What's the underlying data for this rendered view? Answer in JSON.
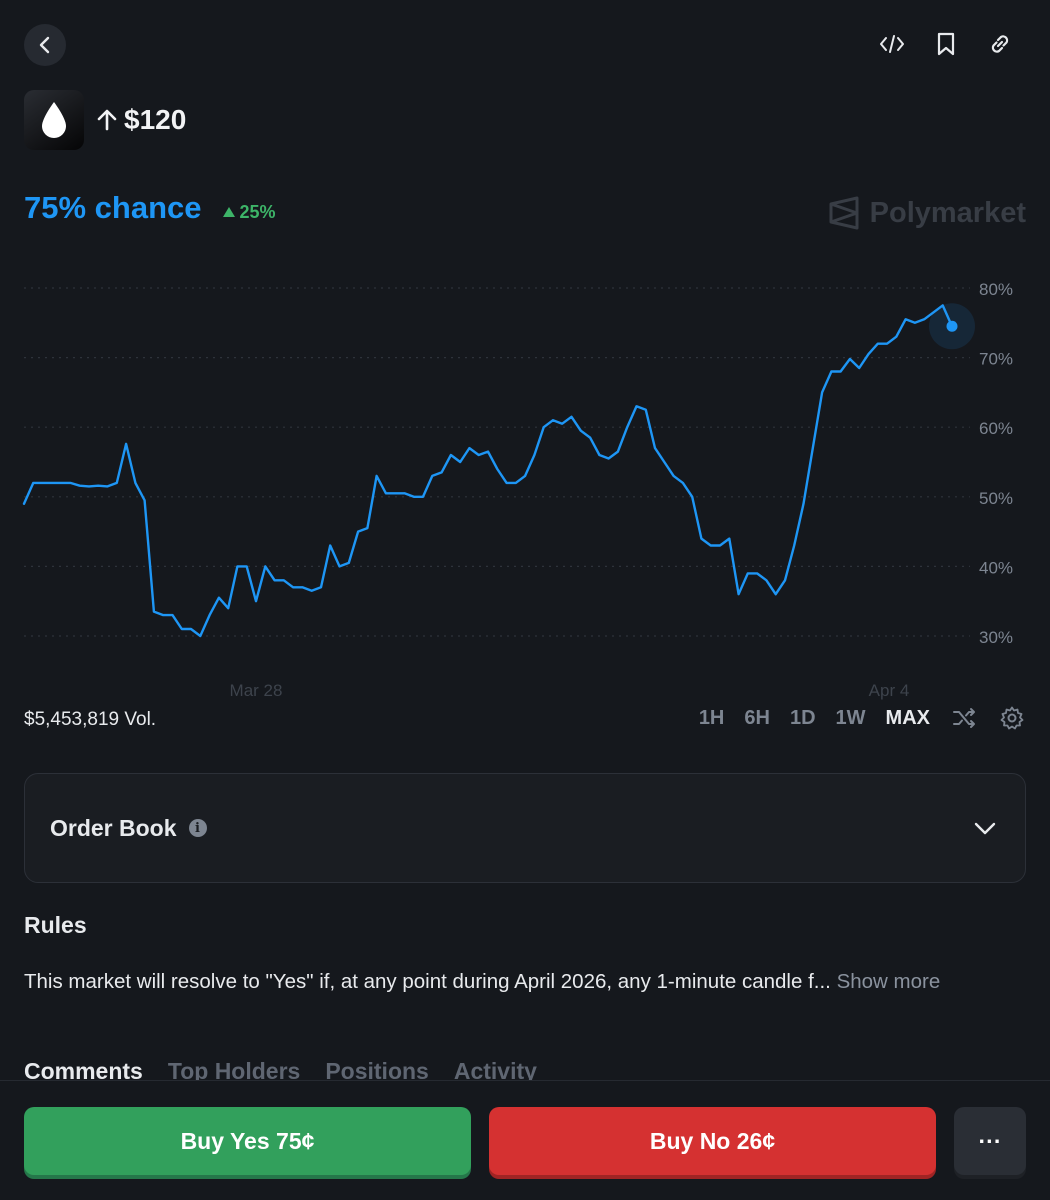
{
  "market": {
    "title": "$120",
    "chance": "75% chance",
    "change": "25%"
  },
  "brand": {
    "name": "Polymarket"
  },
  "chart_data": {
    "type": "line",
    "series": [
      {
        "x": [
          0,
          1,
          2,
          3,
          4,
          5,
          6,
          7,
          8,
          9,
          10,
          11,
          12,
          13,
          14,
          15,
          16,
          17,
          18,
          19,
          20,
          21,
          22,
          23,
          24,
          25,
          26,
          27,
          28,
          29,
          30,
          31,
          32,
          33,
          34,
          35,
          36,
          37,
          38,
          39,
          40,
          41,
          42,
          43,
          44,
          45,
          46,
          47,
          48,
          49,
          50,
          51,
          52,
          53,
          54,
          55,
          56,
          57,
          58,
          59,
          60,
          61,
          62,
          63,
          64,
          65,
          66,
          67,
          68,
          69,
          70,
          71,
          72,
          73,
          74,
          75,
          76,
          77,
          78,
          79,
          80,
          81,
          82,
          83,
          84,
          85,
          86,
          87,
          88,
          89,
          90,
          91,
          92,
          93,
          94,
          95,
          96,
          97,
          98,
          99,
          100
        ],
        "values": [
          49,
          52,
          52,
          52,
          52,
          52,
          51.6,
          51.5,
          51.6,
          51.5,
          52,
          57.6,
          52,
          49.5,
          33.5,
          33,
          33,
          31,
          31,
          30,
          33,
          35.5,
          34,
          40,
          40,
          35,
          40,
          38,
          38,
          37,
          37,
          36.5,
          37,
          43,
          40,
          40.5,
          45,
          45.5,
          53,
          50.5,
          50.5,
          50.5,
          50,
          50,
          53,
          53.5,
          56,
          55,
          57,
          56,
          56.5,
          54,
          52,
          52,
          53,
          56,
          60,
          61,
          60.5,
          61.5,
          59.5,
          58.5,
          56,
          55.5,
          56.5,
          60,
          63,
          62.5,
          57,
          55,
          53,
          52,
          50,
          44,
          43,
          43,
          44,
          36,
          39,
          39,
          38,
          36,
          38,
          43,
          49,
          57,
          65,
          68,
          68,
          69.8,
          68.5,
          70.5,
          72,
          72,
          73,
          75.5,
          75,
          75.5,
          76.5,
          77.5,
          74.5
        ],
        "color": "#1e96f5"
      }
    ],
    "ylim": [
      28,
      82
    ],
    "yticks": [
      "80%",
      "70%",
      "60%",
      "50%",
      "40%",
      "30%"
    ],
    "xticks": [
      "Mar 28",
      "Apr 4"
    ],
    "grid": true,
    "dotted_gridlines": true
  },
  "volume": "$5,453,819 Vol.",
  "ranges": [
    "1H",
    "6H",
    "1D",
    "1W",
    "MAX"
  ],
  "active_range": "MAX",
  "order_book": {
    "title": "Order Book"
  },
  "rules": {
    "heading": "Rules",
    "text": "This market will resolve to \"Yes\" if, at any point during April 2026, any 1-minute candle f...",
    "show_more": "Show more"
  },
  "tabs": [
    "Comments",
    "Top Holders",
    "Positions",
    "Activity"
  ],
  "actions": {
    "buy_yes": "Buy Yes 75¢",
    "buy_no": "Buy No 26¢",
    "more": "···"
  }
}
